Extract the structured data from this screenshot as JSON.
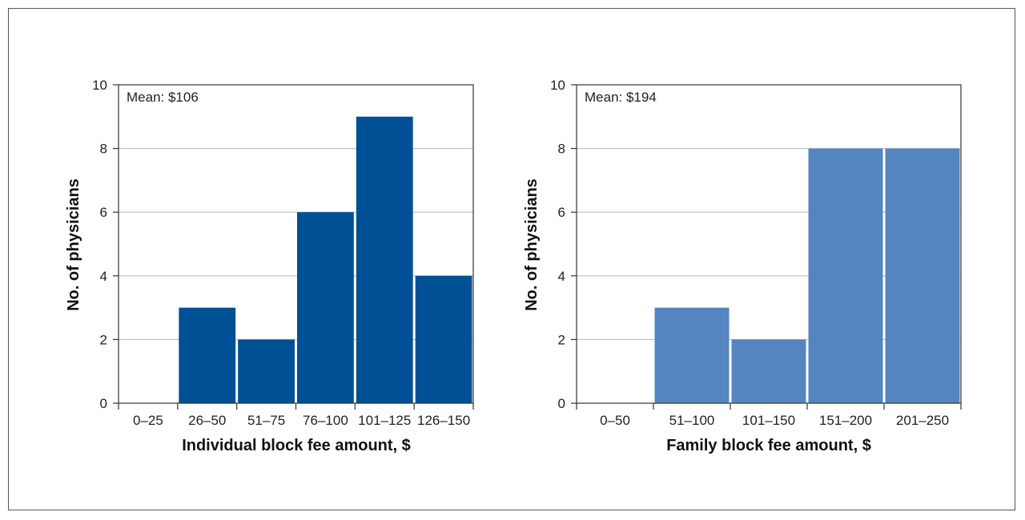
{
  "chart_data": [
    {
      "type": "bar",
      "categories": [
        "0–25",
        "26–50",
        "51–75",
        "76–100",
        "101–125",
        "126–150"
      ],
      "values": [
        0,
        3,
        2,
        6,
        9,
        4
      ],
      "annotation": "Mean: $106",
      "xlabel": "Individual block fee amount, $",
      "ylabel": "No. of physicians",
      "ylim": [
        0,
        10
      ],
      "yticks": [
        0,
        2,
        4,
        6,
        8,
        10
      ],
      "grid": true,
      "color": "#005096"
    },
    {
      "type": "bar",
      "categories": [
        "0–50",
        "51–100",
        "101–150",
        "151–200",
        "201–250"
      ],
      "values": [
        0,
        3,
        2,
        8,
        8
      ],
      "annotation": "Mean: $194",
      "xlabel": "Family block fee amount, $",
      "ylabel": "No. of physicians",
      "ylim": [
        0,
        10
      ],
      "yticks": [
        0,
        2,
        4,
        6,
        8,
        10
      ],
      "grid": true,
      "color": "#5585c0"
    }
  ]
}
